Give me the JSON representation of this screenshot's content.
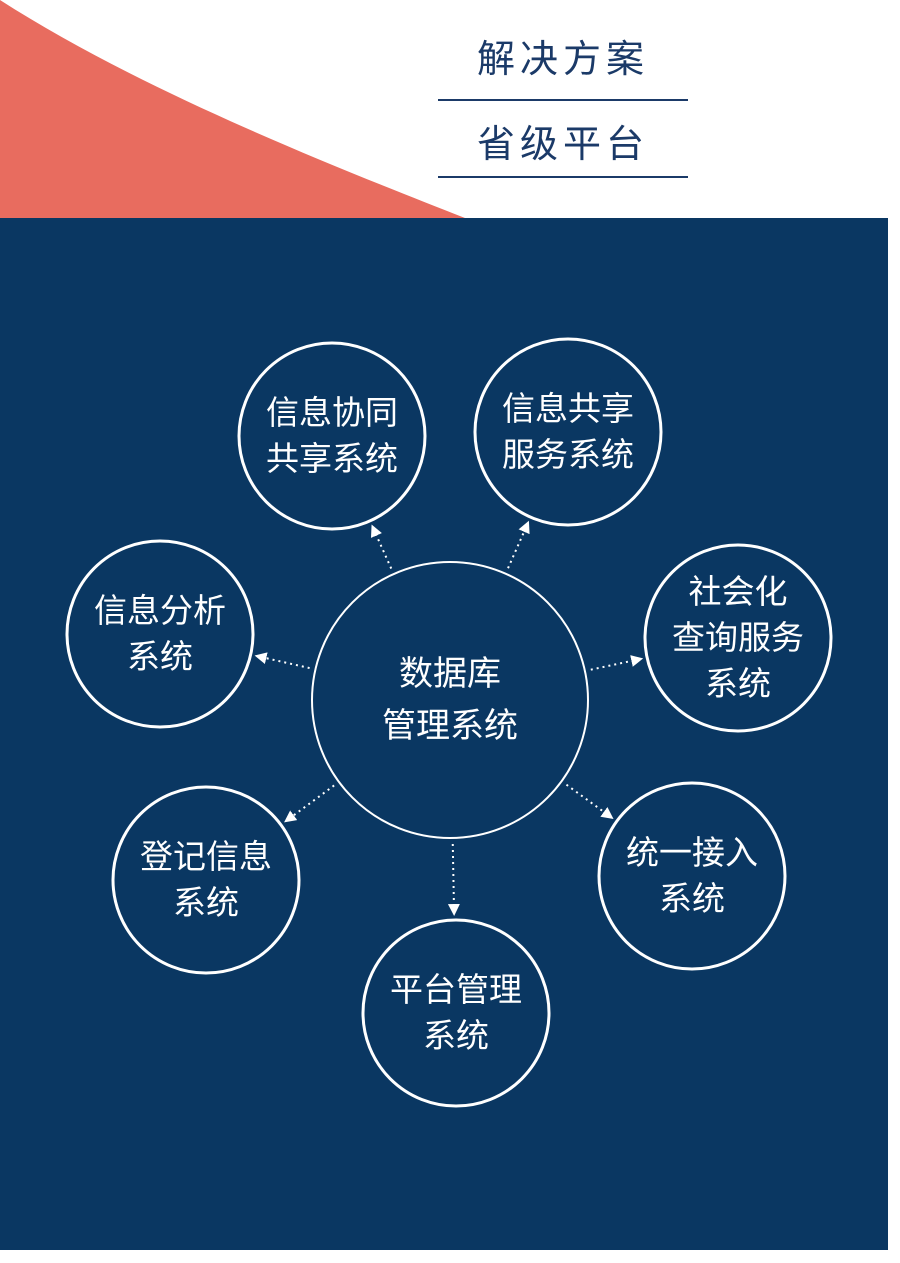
{
  "header": {
    "title": "解决方案",
    "subtitle": "省级平台"
  },
  "colors": {
    "panel": "#0a3762",
    "accent": "#e86c5f",
    "heading": "#1b3a68",
    "stroke": "#ffffff"
  },
  "diagram": {
    "center": {
      "label": "数据库\n管理系统"
    },
    "nodes": [
      {
        "id": "info-collab",
        "label": "信息协同\n共享系统"
      },
      {
        "id": "info-share",
        "label": "信息共享\n服务系统"
      },
      {
        "id": "social-query",
        "label": "社会化\n查询服务\n系统"
      },
      {
        "id": "unified-access",
        "label": "统一接入\n系统"
      },
      {
        "id": "platform-mgmt",
        "label": "平台管理\n系统"
      },
      {
        "id": "registration",
        "label": "登记信息\n系统"
      },
      {
        "id": "info-analysis",
        "label": "信息分析\n系统"
      }
    ],
    "edges": [
      {
        "from": "center",
        "to": "info-collab"
      },
      {
        "from": "center",
        "to": "info-share"
      },
      {
        "from": "center",
        "to": "social-query"
      },
      {
        "from": "center",
        "to": "unified-access"
      },
      {
        "from": "center",
        "to": "platform-mgmt"
      },
      {
        "from": "center",
        "to": "registration"
      },
      {
        "from": "center",
        "to": "info-analysis"
      }
    ]
  }
}
